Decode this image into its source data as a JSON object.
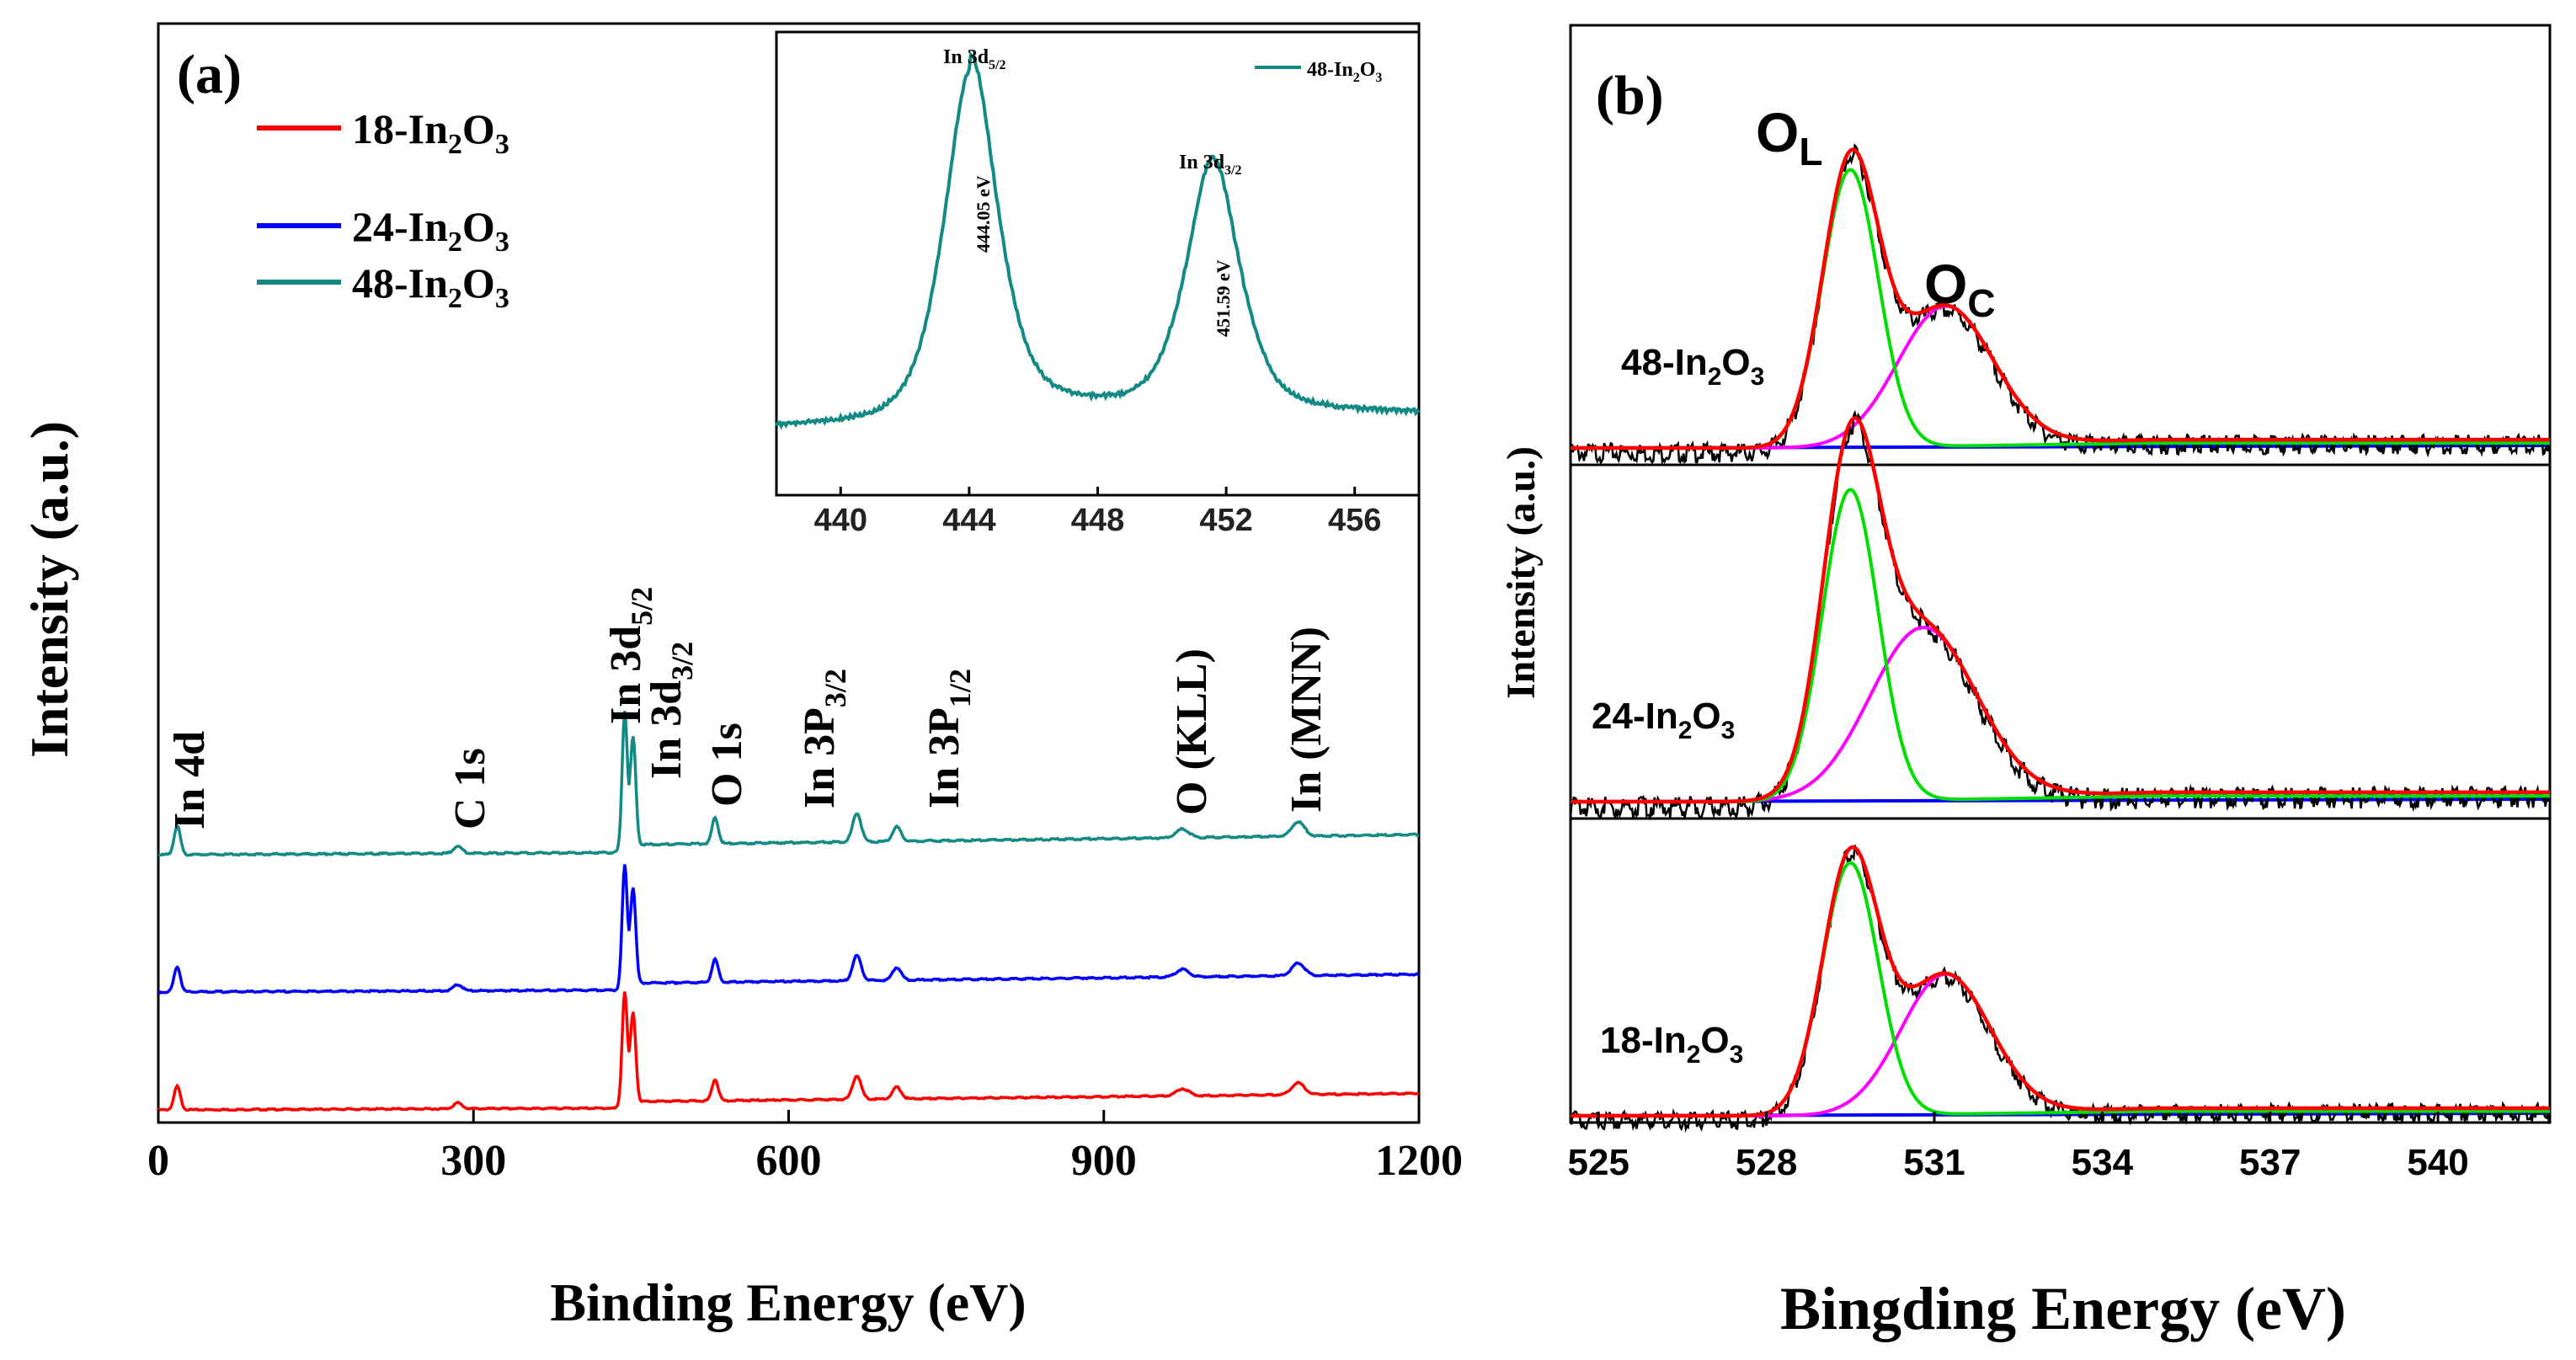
{
  "chart_data": [
    {
      "panel": "(a)",
      "type": "line",
      "xlabel": "Binding Energy (eV)",
      "ylabel": "Intensity (a.u.)",
      "xlim": [
        0,
        1200
      ],
      "xticks": [
        0,
        300,
        600,
        900,
        1200
      ],
      "series": [
        {
          "name": "18-In2O3",
          "label_main": "18-In",
          "sub1": "2",
          "mid": "O",
          "sub2": "3",
          "color": "#ff0000",
          "offset": 0
        },
        {
          "name": "24-In2O3",
          "label_main": "24-In",
          "sub1": "2",
          "mid": "O",
          "sub2": "3",
          "color": "#0000ff",
          "offset": 1
        },
        {
          "name": "48-In2O3",
          "label_main": "48-In",
          "sub1": "2",
          "mid": "O",
          "sub2": "3",
          "color": "#138a84",
          "offset": 2
        }
      ],
      "peaks": [
        {
          "x": 18,
          "h": 0.2,
          "w": 3
        },
        {
          "x": 285,
          "h": 0.05,
          "w": 4
        },
        {
          "x": 444,
          "h": 1.0,
          "w": 2.5
        },
        {
          "x": 452,
          "h": 0.75,
          "w": 2.5
        },
        {
          "x": 530,
          "h": 0.18,
          "w": 3
        },
        {
          "x": 665,
          "h": 0.2,
          "w": 4
        },
        {
          "x": 703,
          "h": 0.1,
          "w": 4
        },
        {
          "x": 975,
          "h": 0.06,
          "w": 6
        },
        {
          "x": 1085,
          "h": 0.1,
          "w": 6
        }
      ],
      "annotations": [
        {
          "x": 18,
          "base": "In 4d",
          "sub": ""
        },
        {
          "x": 285,
          "base": "C 1s",
          "sub": ""
        },
        {
          "x": 440,
          "base": "In 3d",
          "sub": "5/2"
        },
        {
          "x": 490,
          "base": "In 3d",
          "sub": "3/2"
        },
        {
          "x": 530,
          "base": "O 1s",
          "sub": ""
        },
        {
          "x": 640,
          "base": "In 3P",
          "sub": "3/2"
        },
        {
          "x": 755,
          "base": "In 3P",
          "sub": "1/2"
        },
        {
          "x": 975,
          "base": "O (KLL)",
          "sub": ""
        },
        {
          "x": 1085,
          "base": "In (MNN)",
          "sub": ""
        }
      ],
      "inset": {
        "type": "line",
        "xlim": [
          438,
          458
        ],
        "xticks": [
          440,
          444,
          448,
          452,
          456
        ],
        "legend": {
          "main": "48-In",
          "sub1": "2",
          "mid": "O",
          "sub2": "3"
        },
        "color": "#138a84",
        "peaks": [
          {
            "x": 444.05,
            "h": 1.0,
            "w": 0.9,
            "label_base": "In 3d",
            "label_sub": "5/2",
            "energy": "444.05 eV"
          },
          {
            "x": 451.59,
            "h": 0.71,
            "w": 0.9,
            "label_base": "In 3d",
            "label_sub": "3/2",
            "energy": "451.59 eV"
          }
        ]
      }
    },
    {
      "panel": "(b)",
      "type": "line",
      "xlabel": "Bingding Energy (eV)",
      "ylabel": "Intensity (a.u.)",
      "xlim": [
        524.5,
        542
      ],
      "xticks": [
        525,
        528,
        531,
        534,
        537,
        540
      ],
      "colors": {
        "raw": "#000000",
        "envelope": "#ff0000",
        "OL": "#00dd00",
        "OC": "#ff00ff",
        "baseline": "#0000ff"
      },
      "labels": {
        "OL_main": "O",
        "OL_sub": "L",
        "OC_main": "O",
        "OC_sub": "C"
      },
      "subpanels": [
        {
          "name": "48-In2O3",
          "label_main": "48-In",
          "sub1": "2",
          "mid": "O",
          "sub2": "3",
          "OL": {
            "center": 529.5,
            "height": 1.0,
            "width": 0.5
          },
          "OC": {
            "center": 531.2,
            "height": 0.5,
            "width": 0.85
          }
        },
        {
          "name": "24-In2O3",
          "label_main": "24-In",
          "sub1": "2",
          "mid": "O",
          "sub2": "3",
          "OL": {
            "center": 529.5,
            "height": 1.0,
            "width": 0.5
          },
          "OC": {
            "center": 530.8,
            "height": 0.55,
            "width": 0.95
          }
        },
        {
          "name": "18-In2O3",
          "label_main": "18-In",
          "sub1": "2",
          "mid": "O",
          "sub2": "3",
          "OL": {
            "center": 529.5,
            "height": 1.0,
            "width": 0.5
          },
          "OC": {
            "center": 531.2,
            "height": 0.55,
            "width": 0.8
          }
        }
      ]
    }
  ]
}
